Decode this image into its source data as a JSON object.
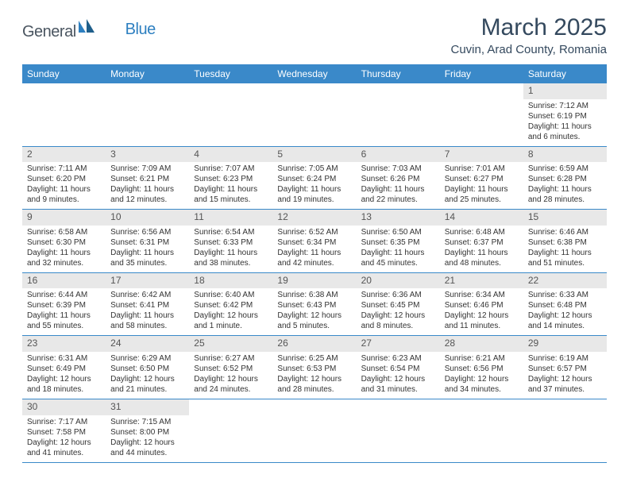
{
  "brand": {
    "general": "General",
    "blue": "Blue"
  },
  "title": "March 2025",
  "location": "Cuvin, Arad County, Romania",
  "colors": {
    "header_bg": "#3a89c9",
    "header_text": "#ffffff",
    "title_color": "#34495e",
    "daynum_bg": "#e8e8e8",
    "border": "#3a89c9"
  },
  "day_labels": [
    "Sunday",
    "Monday",
    "Tuesday",
    "Wednesday",
    "Thursday",
    "Friday",
    "Saturday"
  ],
  "weeks": [
    [
      null,
      null,
      null,
      null,
      null,
      null,
      {
        "n": "1",
        "sr": "Sunrise: 7:12 AM",
        "ss": "Sunset: 6:19 PM",
        "dl1": "Daylight: 11 hours",
        "dl2": "and 6 minutes."
      }
    ],
    [
      {
        "n": "2",
        "sr": "Sunrise: 7:11 AM",
        "ss": "Sunset: 6:20 PM",
        "dl1": "Daylight: 11 hours",
        "dl2": "and 9 minutes."
      },
      {
        "n": "3",
        "sr": "Sunrise: 7:09 AM",
        "ss": "Sunset: 6:21 PM",
        "dl1": "Daylight: 11 hours",
        "dl2": "and 12 minutes."
      },
      {
        "n": "4",
        "sr": "Sunrise: 7:07 AM",
        "ss": "Sunset: 6:23 PM",
        "dl1": "Daylight: 11 hours",
        "dl2": "and 15 minutes."
      },
      {
        "n": "5",
        "sr": "Sunrise: 7:05 AM",
        "ss": "Sunset: 6:24 PM",
        "dl1": "Daylight: 11 hours",
        "dl2": "and 19 minutes."
      },
      {
        "n": "6",
        "sr": "Sunrise: 7:03 AM",
        "ss": "Sunset: 6:26 PM",
        "dl1": "Daylight: 11 hours",
        "dl2": "and 22 minutes."
      },
      {
        "n": "7",
        "sr": "Sunrise: 7:01 AM",
        "ss": "Sunset: 6:27 PM",
        "dl1": "Daylight: 11 hours",
        "dl2": "and 25 minutes."
      },
      {
        "n": "8",
        "sr": "Sunrise: 6:59 AM",
        "ss": "Sunset: 6:28 PM",
        "dl1": "Daylight: 11 hours",
        "dl2": "and 28 minutes."
      }
    ],
    [
      {
        "n": "9",
        "sr": "Sunrise: 6:58 AM",
        "ss": "Sunset: 6:30 PM",
        "dl1": "Daylight: 11 hours",
        "dl2": "and 32 minutes."
      },
      {
        "n": "10",
        "sr": "Sunrise: 6:56 AM",
        "ss": "Sunset: 6:31 PM",
        "dl1": "Daylight: 11 hours",
        "dl2": "and 35 minutes."
      },
      {
        "n": "11",
        "sr": "Sunrise: 6:54 AM",
        "ss": "Sunset: 6:33 PM",
        "dl1": "Daylight: 11 hours",
        "dl2": "and 38 minutes."
      },
      {
        "n": "12",
        "sr": "Sunrise: 6:52 AM",
        "ss": "Sunset: 6:34 PM",
        "dl1": "Daylight: 11 hours",
        "dl2": "and 42 minutes."
      },
      {
        "n": "13",
        "sr": "Sunrise: 6:50 AM",
        "ss": "Sunset: 6:35 PM",
        "dl1": "Daylight: 11 hours",
        "dl2": "and 45 minutes."
      },
      {
        "n": "14",
        "sr": "Sunrise: 6:48 AM",
        "ss": "Sunset: 6:37 PM",
        "dl1": "Daylight: 11 hours",
        "dl2": "and 48 minutes."
      },
      {
        "n": "15",
        "sr": "Sunrise: 6:46 AM",
        "ss": "Sunset: 6:38 PM",
        "dl1": "Daylight: 11 hours",
        "dl2": "and 51 minutes."
      }
    ],
    [
      {
        "n": "16",
        "sr": "Sunrise: 6:44 AM",
        "ss": "Sunset: 6:39 PM",
        "dl1": "Daylight: 11 hours",
        "dl2": "and 55 minutes."
      },
      {
        "n": "17",
        "sr": "Sunrise: 6:42 AM",
        "ss": "Sunset: 6:41 PM",
        "dl1": "Daylight: 11 hours",
        "dl2": "and 58 minutes."
      },
      {
        "n": "18",
        "sr": "Sunrise: 6:40 AM",
        "ss": "Sunset: 6:42 PM",
        "dl1": "Daylight: 12 hours",
        "dl2": "and 1 minute."
      },
      {
        "n": "19",
        "sr": "Sunrise: 6:38 AM",
        "ss": "Sunset: 6:43 PM",
        "dl1": "Daylight: 12 hours",
        "dl2": "and 5 minutes."
      },
      {
        "n": "20",
        "sr": "Sunrise: 6:36 AM",
        "ss": "Sunset: 6:45 PM",
        "dl1": "Daylight: 12 hours",
        "dl2": "and 8 minutes."
      },
      {
        "n": "21",
        "sr": "Sunrise: 6:34 AM",
        "ss": "Sunset: 6:46 PM",
        "dl1": "Daylight: 12 hours",
        "dl2": "and 11 minutes."
      },
      {
        "n": "22",
        "sr": "Sunrise: 6:33 AM",
        "ss": "Sunset: 6:48 PM",
        "dl1": "Daylight: 12 hours",
        "dl2": "and 14 minutes."
      }
    ],
    [
      {
        "n": "23",
        "sr": "Sunrise: 6:31 AM",
        "ss": "Sunset: 6:49 PM",
        "dl1": "Daylight: 12 hours",
        "dl2": "and 18 minutes."
      },
      {
        "n": "24",
        "sr": "Sunrise: 6:29 AM",
        "ss": "Sunset: 6:50 PM",
        "dl1": "Daylight: 12 hours",
        "dl2": "and 21 minutes."
      },
      {
        "n": "25",
        "sr": "Sunrise: 6:27 AM",
        "ss": "Sunset: 6:52 PM",
        "dl1": "Daylight: 12 hours",
        "dl2": "and 24 minutes."
      },
      {
        "n": "26",
        "sr": "Sunrise: 6:25 AM",
        "ss": "Sunset: 6:53 PM",
        "dl1": "Daylight: 12 hours",
        "dl2": "and 28 minutes."
      },
      {
        "n": "27",
        "sr": "Sunrise: 6:23 AM",
        "ss": "Sunset: 6:54 PM",
        "dl1": "Daylight: 12 hours",
        "dl2": "and 31 minutes."
      },
      {
        "n": "28",
        "sr": "Sunrise: 6:21 AM",
        "ss": "Sunset: 6:56 PM",
        "dl1": "Daylight: 12 hours",
        "dl2": "and 34 minutes."
      },
      {
        "n": "29",
        "sr": "Sunrise: 6:19 AM",
        "ss": "Sunset: 6:57 PM",
        "dl1": "Daylight: 12 hours",
        "dl2": "and 37 minutes."
      }
    ],
    [
      {
        "n": "30",
        "sr": "Sunrise: 7:17 AM",
        "ss": "Sunset: 7:58 PM",
        "dl1": "Daylight: 12 hours",
        "dl2": "and 41 minutes."
      },
      {
        "n": "31",
        "sr": "Sunrise: 7:15 AM",
        "ss": "Sunset: 8:00 PM",
        "dl1": "Daylight: 12 hours",
        "dl2": "and 44 minutes."
      },
      null,
      null,
      null,
      null,
      null
    ]
  ]
}
